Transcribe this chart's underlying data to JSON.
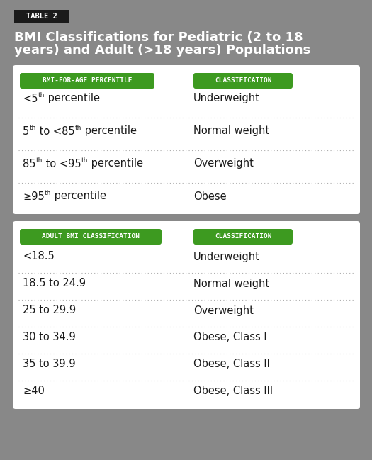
{
  "bg_color": "#888888",
  "white": "#ffffff",
  "black": "#1a1a1a",
  "green": "#3d9a20",
  "text_color": "#1a1a1a",
  "table_label": "TABLE 2",
  "title_line1": "BMI Classifications for Pediatric (2 to 18",
  "title_line2": "years) and Adult (>18 years) Populations",
  "pedi_header_col1": "BMI-FOR-AGE PERCENTILE",
  "pedi_header_col2": "CLASSIFICATION",
  "pedi_rows_raw": [
    "<5$^{th}$ percentile",
    "5$^{th}$ to <85$^{th}$ percentile",
    "85$^{th}$ to <95$^{th}$ percentile",
    "≥95$^{th}$ percentile"
  ],
  "pedi_col2": [
    "Underweight",
    "Normal weight",
    "Overweight",
    "Obese"
  ],
  "adult_header_col1": "ADULT BMI CLASSIFICATION",
  "adult_header_col2": "CLASSIFICATION",
  "adult_col1": [
    "<18.5",
    "18.5 to 24.9",
    "25 to 29.9",
    "30 to 34.9",
    "35 to 39.9",
    "≥40"
  ],
  "adult_col2": [
    "Underweight",
    "Normal weight",
    "Overweight",
    "Obese, Class I",
    "Obese, Class II",
    "Obese, Class III"
  ],
  "pedi_rows_parts": [
    [
      [
        "<5",
        false
      ],
      [
        "th",
        true
      ],
      [
        " percentile",
        false
      ]
    ],
    [
      [
        "5",
        false
      ],
      [
        "th",
        true
      ],
      [
        " to <85",
        false
      ],
      [
        "th",
        true
      ],
      [
        " percentile",
        false
      ]
    ],
    [
      [
        "85",
        false
      ],
      [
        "th",
        true
      ],
      [
        " to <95",
        false
      ],
      [
        "th",
        true
      ],
      [
        " percentile",
        false
      ]
    ],
    [
      [
        "≥95",
        false
      ],
      [
        "th",
        true
      ],
      [
        " percentile",
        false
      ]
    ]
  ],
  "figw": 5.25,
  "figh": 6.49,
  "dpi": 100
}
